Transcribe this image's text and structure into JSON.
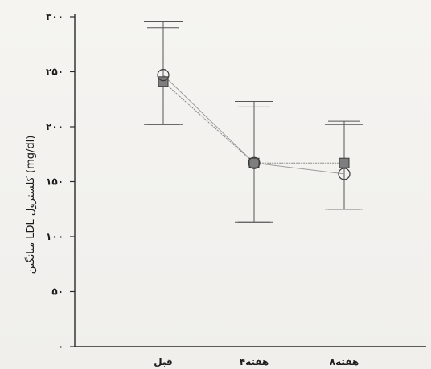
{
  "chart_data": {
    "type": "line",
    "title": "",
    "xlabel": "",
    "ylabel": "میانگین LDL کلسترول (mg/dl)",
    "categories": [
      "قبل",
      "۴هفته",
      "۸هفته"
    ],
    "y_tick_labels": [
      "۰",
      "۵۰",
      "۱۰۰",
      "۱۵۰",
      "۲۰۰",
      "۲۵۰",
      "۳۰۰"
    ],
    "y_tick_values": [
      0,
      50,
      100,
      150,
      200,
      250,
      300
    ],
    "ylim": [
      0,
      300
    ],
    "grid": false,
    "legend": "none",
    "series": [
      {
        "marker": "circle",
        "values": [
          247,
          167,
          157
        ],
        "error_low": [
          202,
          113,
          125
        ],
        "error_high": [
          290,
          218,
          205
        ],
        "color": "#9a9a9a"
      },
      {
        "marker": "square",
        "values": [
          241,
          167,
          167
        ],
        "error_low": [
          202,
          113,
          125
        ],
        "error_high": [
          296,
          223,
          202
        ],
        "color": "#8a8a8a"
      }
    ]
  }
}
